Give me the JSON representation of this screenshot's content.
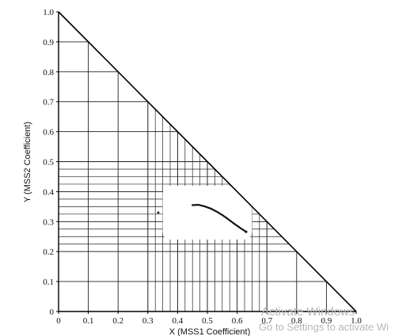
{
  "chart_data": {
    "type": "scatter",
    "xlabel": "X (MSS1 Coefficient)",
    "ylabel": "Y (MSS2 Coefficient)",
    "xlim": [
      0,
      1
    ],
    "ylim": [
      0,
      1
    ],
    "x_ticks": [
      "0",
      "0.1",
      "0.2",
      "0.3",
      "0.4",
      "0.5",
      "0.6",
      "0.7",
      "0.8",
      "0.9",
      "1.0"
    ],
    "y_ticks": [
      "0",
      "0.1",
      "0.2",
      "0.3",
      "0.4",
      "0.5",
      "0.6",
      "0.7",
      "0.8",
      "0.9",
      "1.0"
    ],
    "boundary": {
      "type": "line",
      "points": [
        [
          0,
          1
        ],
        [
          1,
          0
        ]
      ]
    },
    "grid": {
      "coarse_x": [
        0.1,
        0.2,
        0.3,
        0.4,
        0.5,
        0.6,
        0.7,
        0.8,
        0.9
      ],
      "coarse_y": [
        0.1,
        0.2,
        0.3,
        0.4,
        0.5,
        0.6,
        0.7,
        0.8,
        0.9
      ],
      "fine_x_range": [
        0.3,
        0.7
      ],
      "fine_y_range": [
        0.2,
        0.5
      ],
      "fine_step": 0.025
    },
    "empty_region": {
      "x": [
        0.35,
        0.65
      ],
      "y": [
        0.24,
        0.42
      ]
    },
    "series": [
      {
        "points": [
          [
            0.45,
            0.355
          ],
          [
            0.47,
            0.356
          ],
          [
            0.49,
            0.351
          ],
          [
            0.51,
            0.344
          ],
          [
            0.53,
            0.334
          ],
          [
            0.55,
            0.322
          ],
          [
            0.57,
            0.308
          ],
          [
            0.59,
            0.293
          ],
          [
            0.61,
            0.279
          ],
          [
            0.63,
            0.266
          ],
          [
            0.335,
            0.33
          ]
        ]
      }
    ],
    "grid_on": true
  },
  "watermark": {
    "line1": "Activate Windows",
    "line2": "Go to Settings to activate Wi"
  }
}
